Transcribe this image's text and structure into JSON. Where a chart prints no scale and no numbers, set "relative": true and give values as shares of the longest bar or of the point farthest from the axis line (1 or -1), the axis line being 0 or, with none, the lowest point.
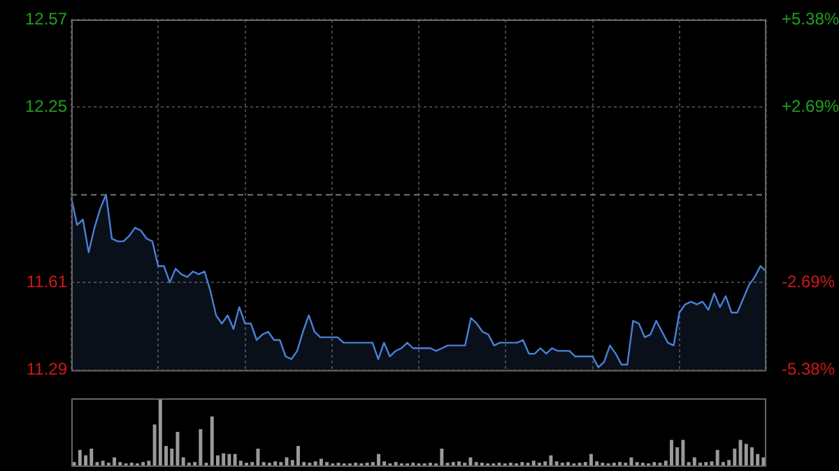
{
  "chart_data": [
    {
      "type": "area",
      "categories": [
        null,
        null,
        null,
        null,
        null,
        null,
        null,
        null,
        null,
        null,
        null,
        null,
        null,
        null,
        null,
        null,
        null,
        null,
        null,
        null,
        null,
        null,
        null,
        null,
        null,
        null,
        null,
        null,
        null,
        null,
        null,
        null,
        null,
        null,
        null,
        null,
        null,
        null,
        null,
        null,
        null,
        null,
        null,
        null,
        null,
        null,
        null,
        null,
        null,
        null,
        null,
        null,
        null,
        null,
        null,
        null,
        null,
        null,
        null,
        null,
        null,
        null,
        null,
        null,
        null,
        null,
        null,
        null,
        null,
        null,
        null,
        null,
        null,
        null,
        null,
        null,
        null,
        null,
        null,
        null,
        null,
        null,
        null,
        null,
        null,
        null,
        null,
        null,
        null,
        null,
        null,
        null,
        null,
        null,
        null,
        null,
        null,
        null,
        null,
        null,
        null,
        null,
        null,
        null,
        null,
        null,
        null,
        null,
        null,
        null,
        null,
        null,
        null,
        null,
        null,
        null,
        null,
        null,
        null,
        null,
        null
      ],
      "series": [
        {
          "color": "#4a80d8",
          "values": [
            11.92,
            11.82,
            11.84,
            11.72,
            11.81,
            11.88,
            11.93,
            11.77,
            11.76,
            11.76,
            11.78,
            11.81,
            11.8,
            11.77,
            11.76,
            11.67,
            11.67,
            11.61,
            11.66,
            11.64,
            11.63,
            11.65,
            11.64,
            11.65,
            11.58,
            11.49,
            11.46,
            11.49,
            11.44,
            11.52,
            11.46,
            11.46,
            11.4,
            11.42,
            11.43,
            11.4,
            11.4,
            11.34,
            11.33,
            11.36,
            11.43,
            11.49,
            11.43,
            11.41,
            11.41,
            11.41,
            11.41,
            11.39,
            11.39,
            11.39,
            11.39,
            11.39,
            11.39,
            11.33,
            11.39,
            11.34,
            11.36,
            11.37,
            11.39,
            11.37,
            11.37,
            11.37,
            11.37,
            11.36,
            11.37,
            11.38,
            11.38,
            11.38,
            11.38,
            11.48,
            11.46,
            11.43,
            11.42,
            11.38,
            11.39,
            11.39,
            11.39,
            11.39,
            11.4,
            11.35,
            11.35,
            11.37,
            11.35,
            11.37,
            11.36,
            11.36,
            11.36,
            11.34,
            11.34,
            11.34,
            11.34,
            11.3,
            11.32,
            11.38,
            11.35,
            11.31,
            11.31,
            11.47,
            11.46,
            11.41,
            11.42,
            11.47,
            11.43,
            11.39,
            11.38,
            11.5,
            11.53,
            11.54,
            11.53,
            11.54,
            11.51,
            11.57,
            11.52,
            11.56,
            11.5,
            11.5,
            11.55,
            11.6,
            11.63,
            11.67,
            11.65
          ]
        }
      ],
      "ylim": [
        11.29,
        12.57
      ],
      "yticks": [
        12.57,
        12.25,
        11.61,
        11.29
      ],
      "y2lim": [
        -5.38,
        5.38
      ],
      "y2ticks": [
        {
          "value": 5.38,
          "label": "+5.38%"
        },
        {
          "value": 2.69,
          "label": "+2.69%"
        },
        {
          "value": -2.69,
          "label": "-2.69%"
        },
        {
          "value": -5.38,
          "label": "-5.38%"
        }
      ],
      "ref_lines": [
        {
          "axis": "y",
          "value": 11.93,
          "line_style": "dashed",
          "color": "#777777"
        }
      ],
      "grid": true,
      "legend": false,
      "marker": "none",
      "line_style": "solid"
    },
    {
      "type": "bar",
      "relative": true,
      "categories": [
        null,
        null,
        null,
        null,
        null,
        null,
        null,
        null,
        null,
        null,
        null,
        null,
        null,
        null,
        null,
        null,
        null,
        null,
        null,
        null,
        null,
        null,
        null,
        null,
        null,
        null,
        null,
        null,
        null,
        null,
        null,
        null,
        null,
        null,
        null,
        null,
        null,
        null,
        null,
        null,
        null,
        null,
        null,
        null,
        null,
        null,
        null,
        null,
        null,
        null,
        null,
        null,
        null,
        null,
        null,
        null,
        null,
        null,
        null,
        null,
        null,
        null,
        null,
        null,
        null,
        null,
        null,
        null,
        null,
        null,
        null,
        null,
        null,
        null,
        null,
        null,
        null,
        null,
        null,
        null,
        null,
        null,
        null,
        null,
        null,
        null,
        null,
        null,
        null,
        null,
        null,
        null,
        null,
        null,
        null,
        null,
        null,
        null,
        null,
        null,
        null,
        null,
        null,
        null,
        null,
        null,
        null,
        null,
        null,
        null,
        null,
        null,
        null,
        null,
        null,
        null,
        null,
        null,
        null,
        null,
        null
      ],
      "color": "#9a9a9a",
      "values": [
        0.05,
        0.23,
        0.15,
        0.25,
        0.05,
        0.07,
        0.04,
        0.12,
        0.05,
        0.03,
        0.04,
        0.03,
        0.05,
        0.07,
        0.61,
        1,
        0.29,
        0.25,
        0.5,
        0.12,
        0.04,
        0.05,
        0.54,
        0.04,
        0.73,
        0.15,
        0.18,
        0.17,
        0.17,
        0.07,
        0.04,
        0.05,
        0.25,
        0.05,
        0.04,
        0.06,
        0.05,
        0.12,
        0.08,
        0.29,
        0.05,
        0.04,
        0.06,
        0.1,
        0.05,
        0.03,
        0.04,
        0.03,
        0.03,
        0.04,
        0.03,
        0.04,
        0.05,
        0.17,
        0.06,
        0.03,
        0.05,
        0.03,
        0.03,
        0.04,
        0.03,
        0.03,
        0.04,
        0.03,
        0.25,
        0.04,
        0.05,
        0.06,
        0.04,
        0.12,
        0.05,
        0.04,
        0.03,
        0.03,
        0.04,
        0.03,
        0.04,
        0.03,
        0.05,
        0.04,
        0.07,
        0.04,
        0.06,
        0.15,
        0.06,
        0.04,
        0.05,
        0.03,
        0.04,
        0.05,
        0.17,
        0.06,
        0.04,
        0.03,
        0.04,
        0.05,
        0.04,
        0.12,
        0.05,
        0.04,
        0.03,
        0.05,
        0.04,
        0.07,
        0.38,
        0.27,
        0.38,
        0.05,
        0.12,
        0.04,
        0.05,
        0.06,
        0.23,
        0.05,
        0.08,
        0.25,
        0.38,
        0.32,
        0.27,
        0.17,
        0.12
      ],
      "legend": false
    }
  ]
}
